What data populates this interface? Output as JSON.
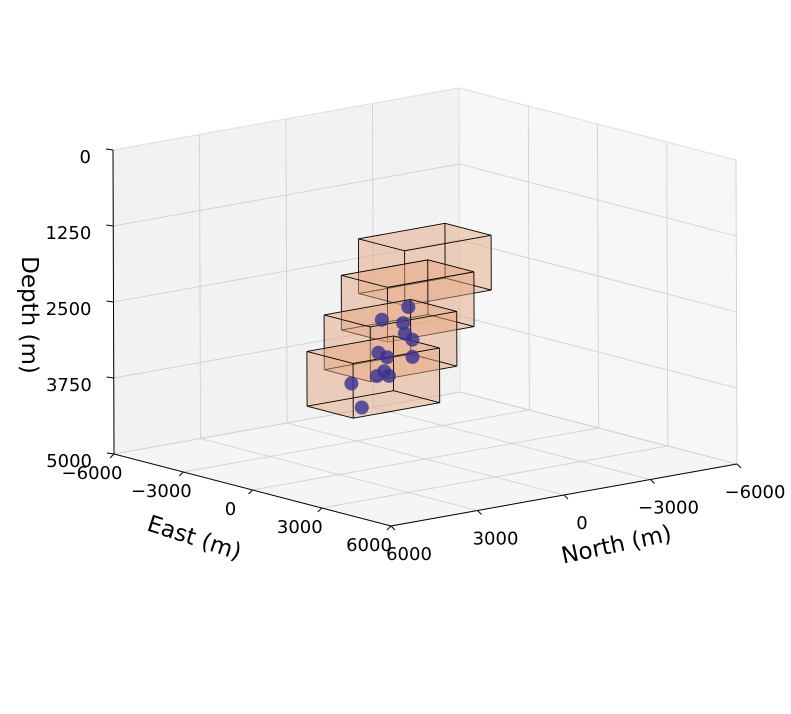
{
  "chart_data": {
    "type": "scatter3d",
    "title": "",
    "axes": {
      "north": {
        "label": "North (m)",
        "range": [
          6000,
          -6000
        ],
        "ticks": [
          {
            "value": 6000,
            "label": "6000"
          },
          {
            "value": 3000,
            "label": "3000"
          },
          {
            "value": 0,
            "label": "0"
          },
          {
            "value": -3000,
            "label": "−3000"
          },
          {
            "value": -6000,
            "label": "−6000"
          }
        ]
      },
      "east": {
        "label": "East (m)",
        "range": [
          6000,
          -6000
        ],
        "ticks": [
          {
            "value": 6000,
            "label": "6000"
          },
          {
            "value": 3000,
            "label": "3000"
          },
          {
            "value": 0,
            "label": "0"
          },
          {
            "value": -3000,
            "label": "−3000"
          },
          {
            "value": -6000,
            "label": "−6000"
          }
        ]
      },
      "depth": {
        "label": "Depth (m)",
        "range": [
          0,
          5000
        ],
        "inverted": true,
        "ticks": [
          {
            "value": 0,
            "label": "0"
          },
          {
            "value": 1250,
            "label": "1250"
          },
          {
            "value": 2500,
            "label": "2500"
          },
          {
            "value": 3750,
            "label": "3750"
          },
          {
            "value": 5000,
            "label": "5000"
          }
        ]
      }
    },
    "grid": true,
    "boxes": [
      {
        "north": [
          -1500,
          1500
        ],
        "east": [
          -1000,
          1000
        ],
        "depth": [
          1350,
          2250
        ],
        "color": "#e6a57e"
      },
      {
        "north": [
          -900,
          2100
        ],
        "east": [
          -1000,
          1000
        ],
        "depth": [
          1900,
          2800
        ],
        "color": "#e6a57e"
      },
      {
        "north": [
          -300,
          2700
        ],
        "east": [
          -1000,
          1000
        ],
        "depth": [
          2500,
          3400
        ],
        "color": "#e6a57e"
      },
      {
        "north": [
          300,
          3300
        ],
        "east": [
          -1000,
          1000
        ],
        "depth": [
          3050,
          3950
        ],
        "color": "#e6a57e"
      }
    ],
    "points_style": {
      "color": "#3a2f8f",
      "opacity": 0.8
    },
    "points": [
      {
        "north": 100,
        "east": -600,
        "depth": 2550
      },
      {
        "north": 700,
        "east": -1000,
        "depth": 2750
      },
      {
        "north": 1000,
        "east": 300,
        "depth": 2650
      },
      {
        "north": 700,
        "east": 0,
        "depth": 2880
      },
      {
        "north": 200,
        "east": -300,
        "depth": 3050
      },
      {
        "north": 1000,
        "east": -400,
        "depth": 3280
      },
      {
        "north": 600,
        "east": 200,
        "depth": 3250
      },
      {
        "north": 1300,
        "east": -400,
        "depth": 3180
      },
      {
        "north": 1500,
        "east": 100,
        "depth": 3420
      },
      {
        "north": 1100,
        "east": -200,
        "depth": 3560
      },
      {
        "north": 1600,
        "east": -1200,
        "depth": 3740
      },
      {
        "north": 3000,
        "east": 1000,
        "depth": 3800
      },
      {
        "north": 400,
        "east": -1600,
        "depth": 3760
      }
    ]
  }
}
